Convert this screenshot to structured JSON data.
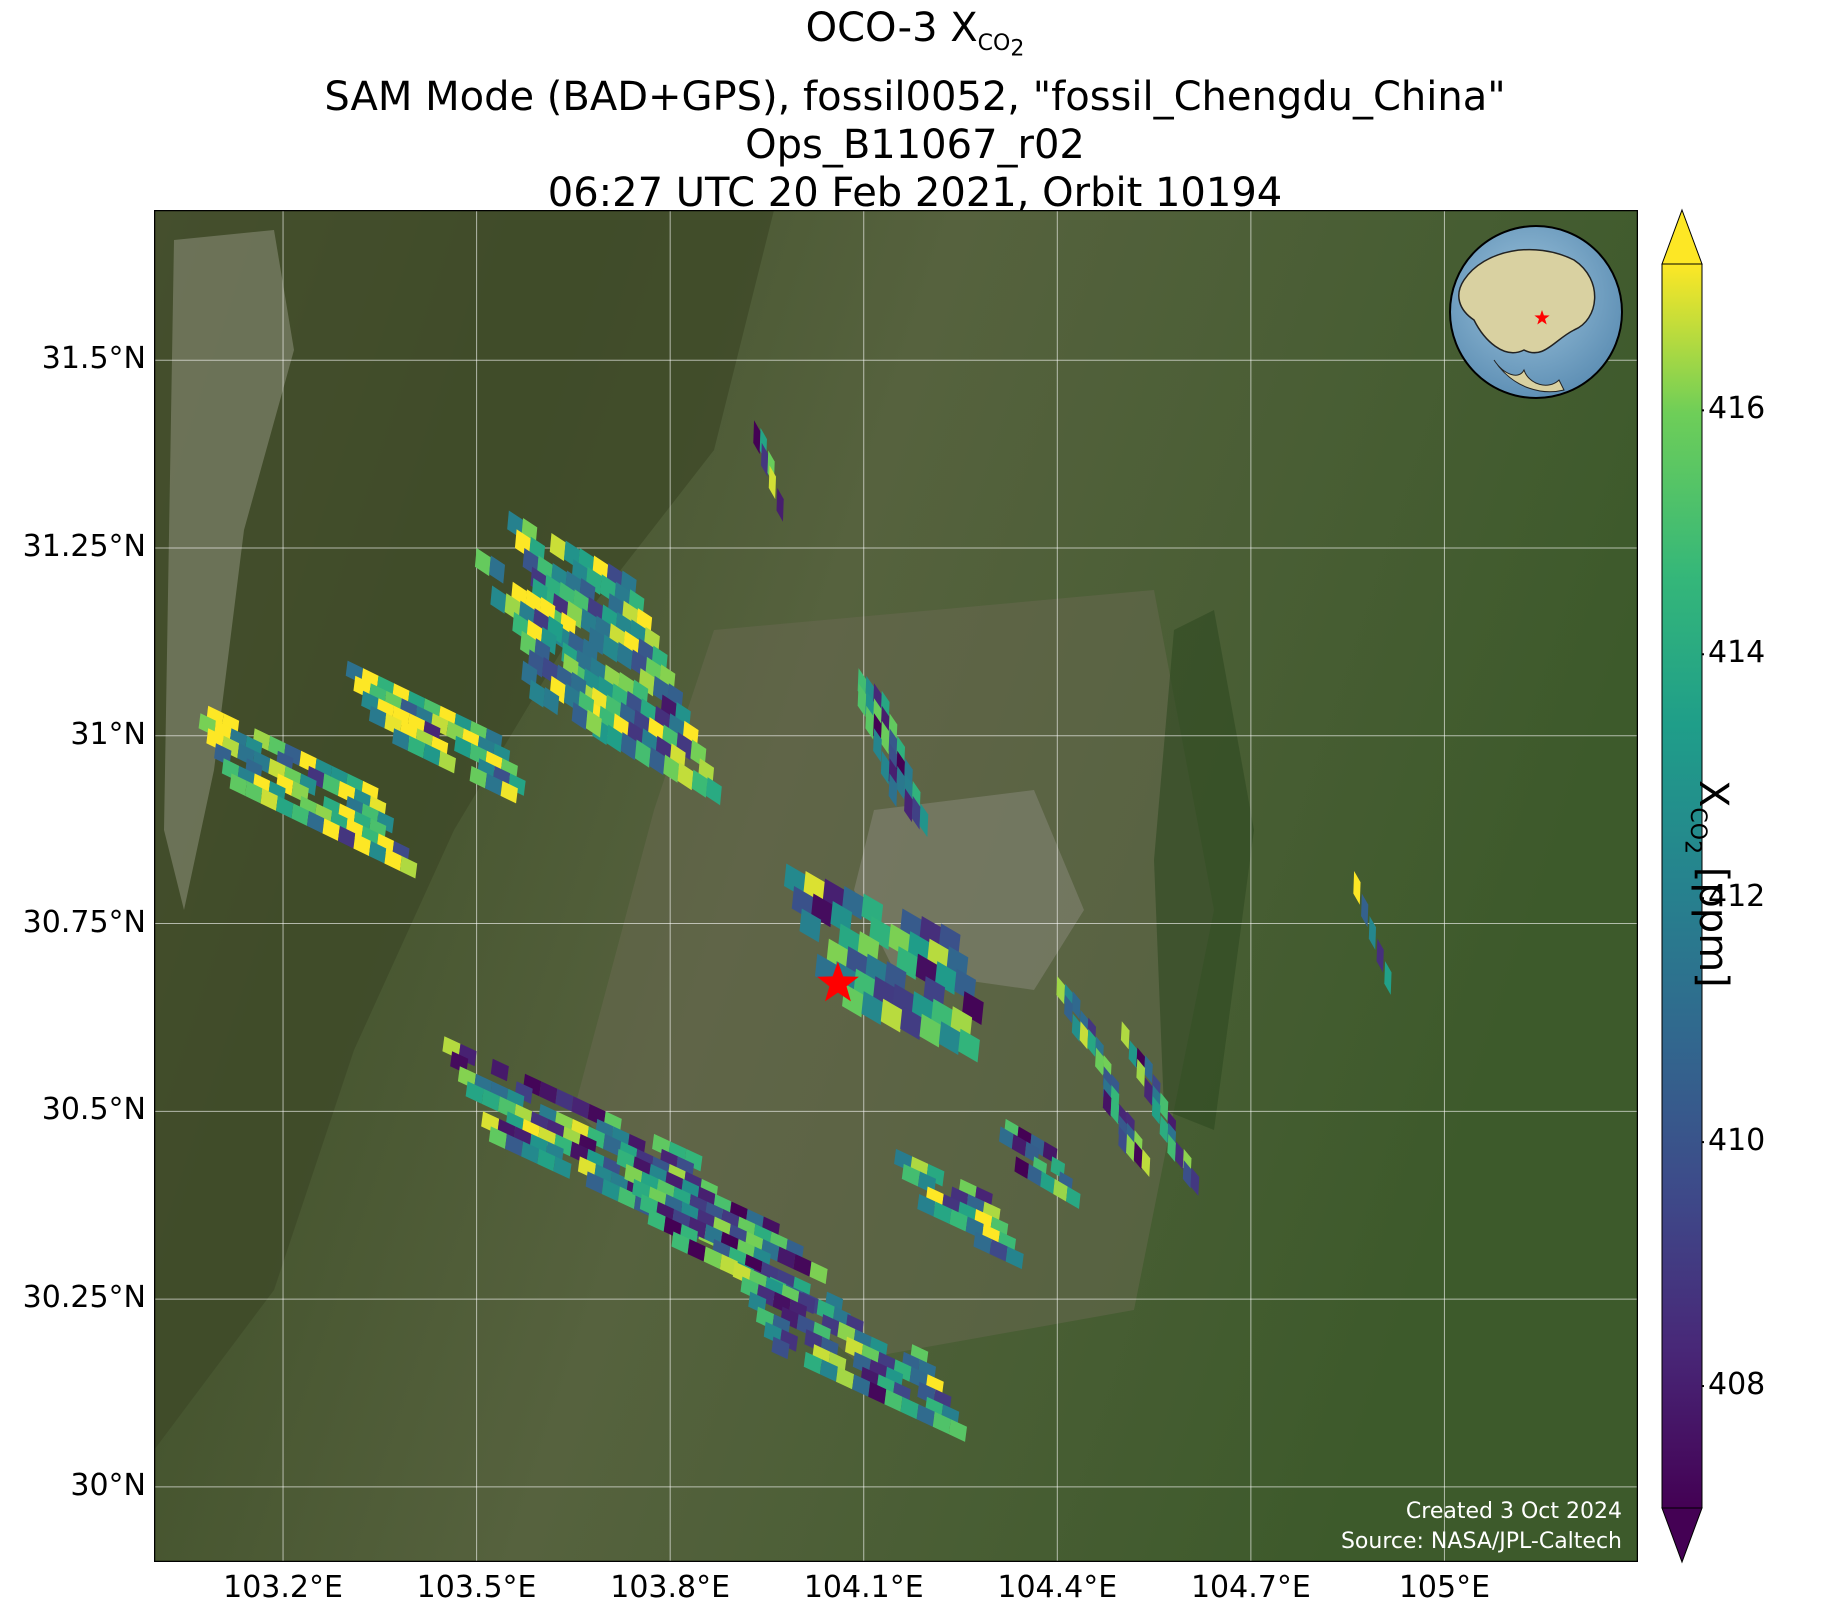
{
  "title": {
    "line1_prefix": "OCO-3 X",
    "line1_sub": "CO",
    "line1_subsub": "2",
    "line2": "SAM Mode (BAD+GPS), fossil0052, \"fossil_Chengdu_China\"",
    "line3": "Ops_B11067_r02",
    "line4": "06:27 UTC 20 Feb 2021, Orbit 10194"
  },
  "map": {
    "lon_range": [
      103.0,
      105.3
    ],
    "lat_range": [
      29.9,
      31.7
    ],
    "lat_ticks": [
      "31.5°N",
      "31.25°N",
      "31°N",
      "30.75°N",
      "30.5°N",
      "30.25°N",
      "30°N"
    ],
    "lat_tick_values": [
      31.5,
      31.25,
      31.0,
      30.75,
      30.5,
      30.25,
      30.0
    ],
    "lon_ticks": [
      "103.2°E",
      "103.5°E",
      "103.8°E",
      "104.1°E",
      "104.4°E",
      "104.7°E",
      "105°E"
    ],
    "lon_tick_values": [
      103.2,
      103.5,
      103.8,
      104.1,
      104.4,
      104.7,
      105.0
    ],
    "target": {
      "lon": 104.06,
      "lat": 30.67,
      "color": "#ff0000"
    },
    "credit_created": "Created 3 Oct 2024",
    "credit_source": "Source: NASA/JPL-Caltech",
    "colors": {
      "mountain": "#4d5a34",
      "lowland": "#3e5a2c",
      "urban": "#7a7a6a",
      "grid": "#ffffff"
    }
  },
  "colorbar": {
    "label_prefix": "X",
    "label_sub": "CO",
    "label_subsub": "2",
    "label_suffix": " [ppm]",
    "range": [
      407.0,
      417.2
    ],
    "ticks": [
      "408",
      "410",
      "412",
      "414",
      "416"
    ],
    "tick_values": [
      408,
      410,
      412,
      414,
      416
    ],
    "extend": "both",
    "cmap": "viridis"
  },
  "swaths": [
    {
      "lon0": 103.55,
      "lat0": 31.3,
      "dx": 0.022,
      "dy": -0.025,
      "nc": 9,
      "nr": 12,
      "bias": 0.3
    },
    {
      "lon0": 103.5,
      "lat0": 31.25,
      "dx": 0.022,
      "dy": -0.025,
      "nc": 5,
      "nr": 8,
      "bias": 0.5
    },
    {
      "lon0": 103.06,
      "lat0": 31.05,
      "dx": 0.024,
      "dy": -0.02,
      "nc": 12,
      "nr": 6,
      "bias": 0.55
    },
    {
      "lon0": 103.3,
      "lat0": 31.1,
      "dx": 0.024,
      "dy": -0.02,
      "nc": 10,
      "nr": 5,
      "bias": 0.45
    },
    {
      "lon0": 103.45,
      "lat0": 30.6,
      "dx": 0.025,
      "dy": -0.02,
      "nc": 16,
      "nr": 7,
      "bias": 0.0
    },
    {
      "lon0": 103.72,
      "lat0": 30.45,
      "dx": 0.025,
      "dy": -0.02,
      "nc": 12,
      "nr": 6,
      "bias": -0.1
    },
    {
      "lon0": 103.9,
      "lat0": 30.3,
      "dx": 0.025,
      "dy": -0.02,
      "nc": 12,
      "nr": 6,
      "bias": 0.05
    },
    {
      "lon0": 104.15,
      "lat0": 30.45,
      "dx": 0.025,
      "dy": -0.02,
      "nc": 6,
      "nr": 5,
      "bias": 0.15
    },
    {
      "lon0": 104.4,
      "lat0": 30.68,
      "dx": 0.012,
      "dy": -0.025,
      "nc": 4,
      "nr": 10,
      "bias": 0.0
    },
    {
      "lon0": 104.5,
      "lat0": 30.62,
      "dx": 0.012,
      "dy": -0.025,
      "nc": 3,
      "nr": 8,
      "bias": -0.05
    },
    {
      "lon0": 104.3,
      "lat0": 30.5,
      "dx": 0.02,
      "dy": -0.02,
      "nc": 5,
      "nr": 4,
      "bias": -0.1
    },
    {
      "lon0": 103.98,
      "lat0": 30.83,
      "dx": 0.03,
      "dy": -0.03,
      "nc": 9,
      "nr": 6,
      "bias": 0.0
    },
    {
      "lon0": 104.08,
      "lat0": 31.1,
      "dx": 0.012,
      "dy": -0.03,
      "nc": 5,
      "nr": 6,
      "bias": -0.05
    },
    {
      "lon0": 104.86,
      "lat0": 30.82,
      "dx": 0.01,
      "dy": -0.03,
      "nc": 1,
      "nr": 5,
      "bias": 0.2
    },
    {
      "lon0": 103.93,
      "lat0": 31.42,
      "dx": 0.01,
      "dy": -0.03,
      "nc": 2,
      "nr": 4,
      "bias": -0.3
    }
  ]
}
